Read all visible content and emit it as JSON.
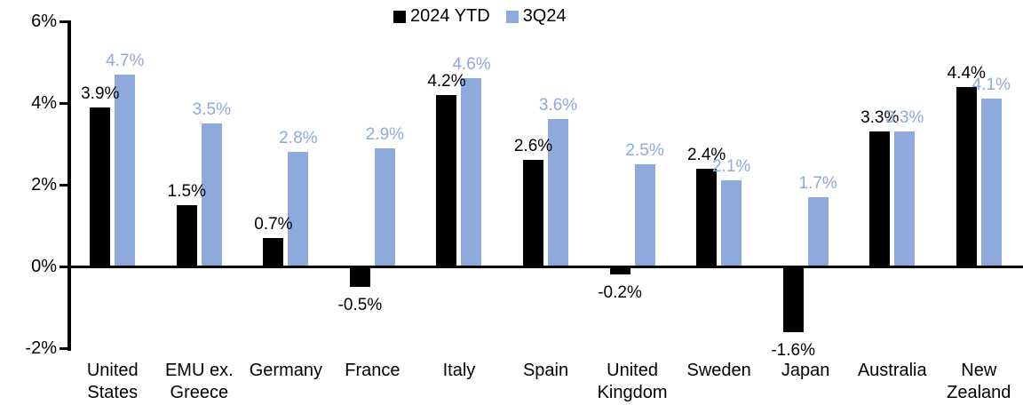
{
  "legend": {
    "items": [
      {
        "label": "2024 YTD",
        "color": "#000000"
      },
      {
        "label": "3Q24",
        "color": "#8EA9DB"
      }
    ]
  },
  "chart_data": {
    "type": "bar",
    "title": "",
    "xlabel": "",
    "ylabel": "",
    "categories": [
      "United States",
      "EMU ex. Greece",
      "Germany",
      "France",
      "Italy",
      "Spain",
      "United Kingdom",
      "Sweden",
      "Japan",
      "Australia",
      "New Zealand"
    ],
    "series": [
      {
        "name": "2024 YTD",
        "color": "#000000",
        "values": [
          3.9,
          1.5,
          0.7,
          -0.5,
          4.2,
          2.6,
          -0.2,
          2.4,
          -1.6,
          3.3,
          4.4
        ],
        "data_labels": [
          "3.9%",
          "1.5%",
          "0.7%",
          "-0.5%",
          "4.2%",
          "2.6%",
          "-0.2%",
          "2.4%",
          "-1.6%",
          "3.3%",
          "4.4%"
        ]
      },
      {
        "name": "3Q24",
        "color": "#8EA9DB",
        "values": [
          4.7,
          3.5,
          2.8,
          2.9,
          4.6,
          3.6,
          2.5,
          2.1,
          1.7,
          3.3,
          4.1
        ],
        "data_labels": [
          "4.7%",
          "3.5%",
          "2.8%",
          "2.9%",
          "4.6%",
          "3.6%",
          "2.5%",
          "2.1%",
          "1.7%",
          "3.3%",
          "4.1%"
        ]
      }
    ],
    "ylim": [
      -2,
      6
    ],
    "yticks": {
      "values": [
        6,
        4,
        2,
        0,
        -2
      ],
      "labels": [
        "6%",
        "4%",
        "2%",
        "0%",
        "-2%"
      ]
    },
    "grid": false,
    "legend_position": "top-center",
    "axis_color": "#000000"
  }
}
